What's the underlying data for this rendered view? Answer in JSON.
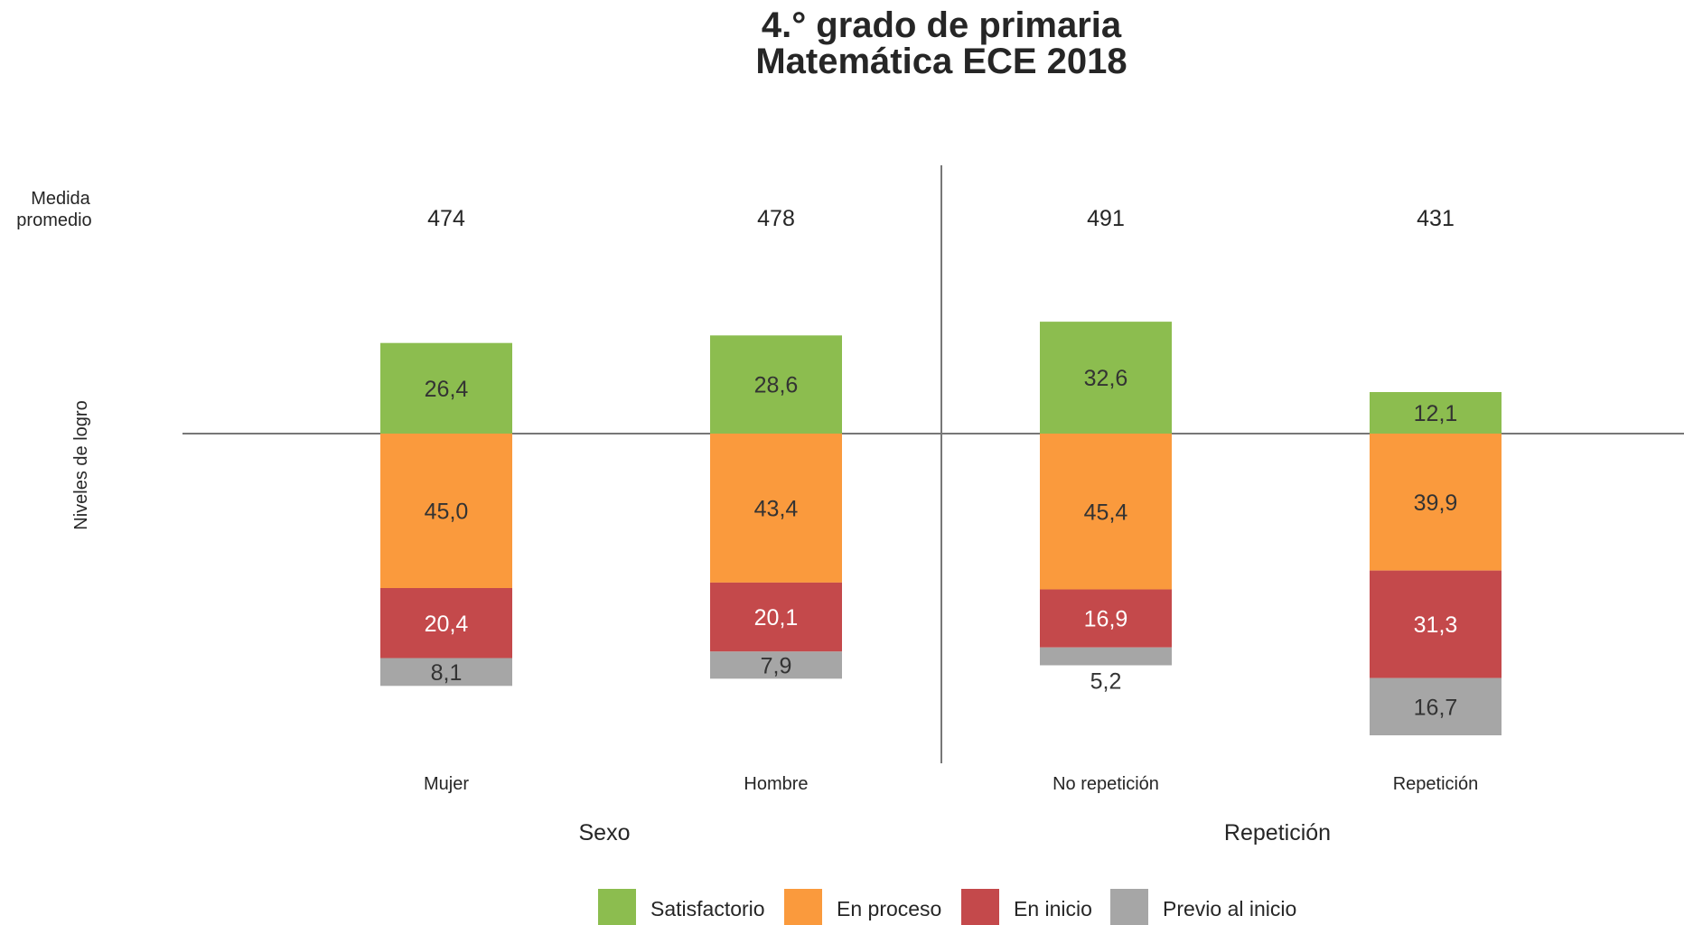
{
  "chart_data": {
    "type": "bar",
    "title": "4.° grado de primaria",
    "subtitle": "Matemática ECE 2018",
    "row_label_mean": [
      "Medida",
      "promedio"
    ],
    "ylabel": "Niveles de logro",
    "categories": [
      "Mujer",
      "Hombre",
      "No repetición",
      "Repetición"
    ],
    "groups": [
      {
        "label": "Sexo",
        "categories": [
          "Mujer",
          "Hombre"
        ]
      },
      {
        "label": "Repetición",
        "categories": [
          "No repetición",
          "Repetición"
        ]
      }
    ],
    "mean_scores": [
      "474",
      "478",
      "491",
      "431"
    ],
    "series": [
      {
        "name": "Satisfactorio",
        "color": "#8cbd4f",
        "values": [
          26.4,
          28.6,
          32.6,
          12.1
        ],
        "labels": [
          "26,4",
          "28,6",
          "32,6",
          "12,1"
        ],
        "label_color": "#333333"
      },
      {
        "name": "En proceso",
        "color": "#fa9a3d",
        "values": [
          45.0,
          43.4,
          45.4,
          39.9
        ],
        "labels": [
          "45,0",
          "43,4",
          "45,4",
          "39,9"
        ],
        "label_color": "#333333"
      },
      {
        "name": "En inicio",
        "color": "#c4494b",
        "values": [
          20.4,
          20.1,
          16.9,
          31.3
        ],
        "labels": [
          "20,4",
          "20,1",
          "16,9",
          "31,3"
        ],
        "label_color": "#ffffff"
      },
      {
        "name": "Previo al inicio",
        "color": "#a6a6a6",
        "values": [
          8.1,
          7.9,
          5.2,
          16.7
        ],
        "labels": [
          "8,1",
          "7,9",
          "5,2",
          "16,7"
        ],
        "label_color": "#333333"
      }
    ],
    "legend_position": "bottom",
    "grid": false
  }
}
